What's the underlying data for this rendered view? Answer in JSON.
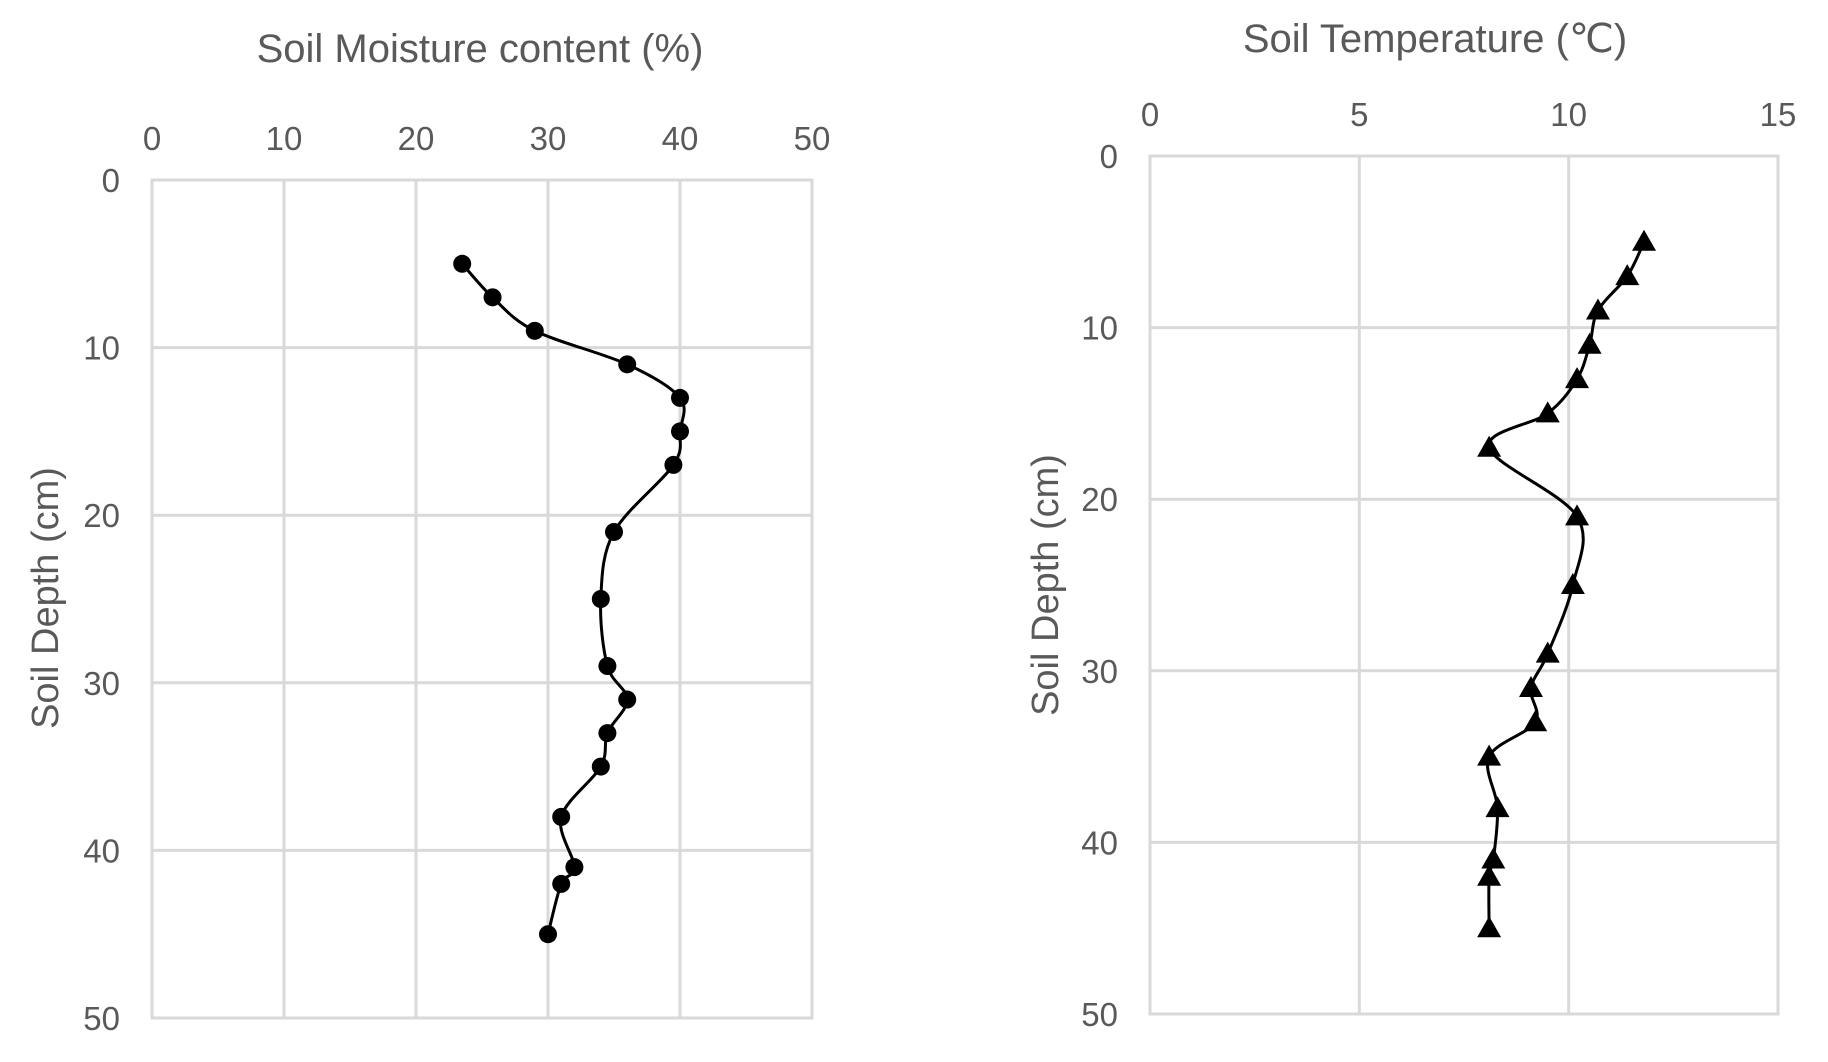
{
  "chart_data": [
    {
      "type": "line",
      "title": "Soil Moisture content (%)",
      "xlabel": "",
      "ylabel": "Soil Depth (cm)",
      "xlim": [
        0,
        50
      ],
      "ylim": [
        0,
        50
      ],
      "x_ticks": [
        0,
        10,
        20,
        30,
        40,
        50
      ],
      "y_ticks": [
        0,
        10,
        20,
        30,
        40,
        50
      ],
      "x_axis_position": "top",
      "y_axis_reversed": true,
      "grid": true,
      "marker": "circle",
      "line_color": "#000000",
      "series": [
        {
          "x": [
            23.5,
            25.8,
            29,
            36,
            40,
            40,
            39.5,
            35,
            34,
            34.5,
            36,
            34.5,
            34,
            31,
            32,
            31,
            30
          ],
          "y": [
            5,
            7,
            9,
            11,
            13,
            15,
            17,
            21,
            25,
            29,
            31,
            33,
            35,
            38,
            41,
            42,
            45
          ]
        }
      ]
    },
    {
      "type": "line",
      "title": "Soil Temperature (℃)",
      "xlabel": "",
      "ylabel": "Soil Depth (cm)",
      "xlim": [
        0,
        15
      ],
      "ylim": [
        0,
        50
      ],
      "x_ticks": [
        0,
        5,
        10,
        15
      ],
      "y_ticks": [
        0,
        10,
        20,
        30,
        40,
        50
      ],
      "x_axis_position": "top",
      "y_axis_reversed": true,
      "grid": true,
      "marker": "triangle",
      "line_color": "#000000",
      "series": [
        {
          "x": [
            11.8,
            11.4,
            10.7,
            10.5,
            10.2,
            9.5,
            8.1,
            10.2,
            10.1,
            9.5,
            9.1,
            9.2,
            8.1,
            8.3,
            8.2,
            8.1,
            8.1
          ],
          "y": [
            5,
            7,
            9,
            11,
            13,
            15,
            17,
            21,
            25,
            29,
            31,
            33,
            35,
            38,
            41,
            42,
            45
          ]
        }
      ]
    }
  ]
}
